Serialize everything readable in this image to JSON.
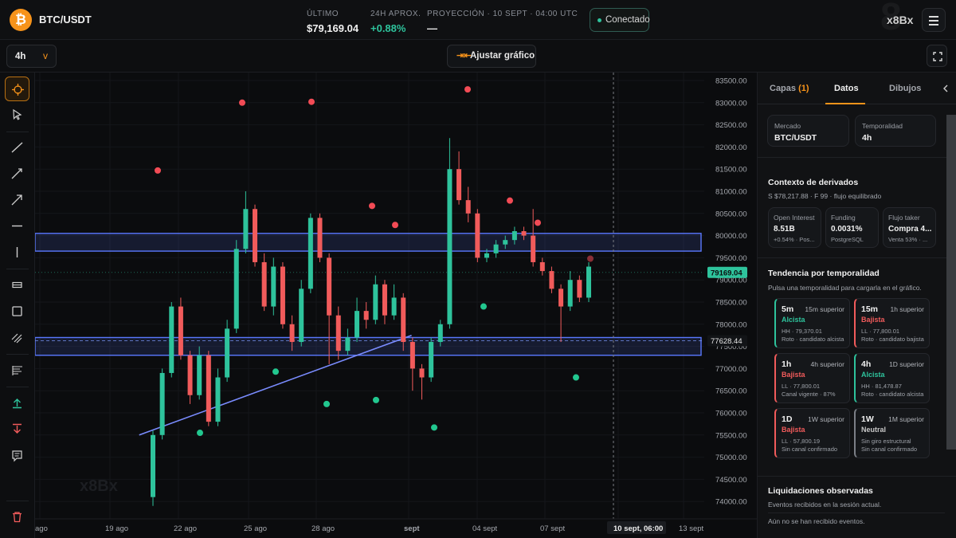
{
  "header": {
    "pair_icon": "bitcoin-icon",
    "pair": "BTC/USDT",
    "last_label": "ÚLTIMO",
    "last_value": "$79,169.04",
    "change_label": "24H APROX.",
    "change_value": "+0.88%",
    "projection_label": "PROYECCIÓN · 10 SEPT · 04:00 UTC",
    "projection_value": "—",
    "status": "Conectado",
    "brand": "x8Bx",
    "brand_bg": "8",
    "menu_icon": "hamburger-menu-icon"
  },
  "toolbar": {
    "timeframe": "4h",
    "timeframe_chevron": "v",
    "fit_label": "Ajustar gráfico",
    "fit_icon": "fit-arrows-icon",
    "fullscreen_icon": "fullscreen-icon"
  },
  "tools": [
    "crosshair-icon",
    "cursor-icon",
    "trend-line-icon",
    "ray-icon",
    "arrow-icon",
    "horizontal-line-icon",
    "vertical-line-icon",
    "rectangle-band-icon",
    "rectangle-icon",
    "channel-icon",
    "fib-levels-icon",
    "long-position-icon",
    "short-position-icon",
    "note-icon",
    "trash-icon"
  ],
  "chart_data": {
    "type": "candlestick",
    "symbol": "BTC/USDT",
    "timeframe": "4h",
    "watermark": "x8Bx",
    "y_ticks": [
      "83500.00",
      "83000.00",
      "82500.00",
      "82000.00",
      "81500.00",
      "81000.00",
      "80500.00",
      "80000.00",
      "79500.00",
      "79000.00",
      "78500.00",
      "78000.00",
      "77500.00",
      "77000.00",
      "76500.00",
      "76000.00",
      "75500.00",
      "75000.00",
      "74500.00",
      "74000.00"
    ],
    "x_ticks": [
      "ago",
      "19 ago",
      "22 ago",
      "25 ago",
      "28 ago",
      "sept",
      "04 sept",
      "07 sept",
      "10 sept, 06:00",
      "13 sept"
    ],
    "price_tag": "79169.04",
    "level_tag": "77628.44",
    "colors": {
      "up": "#2ec39c",
      "down": "#f15b5b",
      "zone": "#5a78ff",
      "accent": "#f7931a"
    },
    "zones": [
      [
        79650,
        80050
      ],
      [
        77300,
        77700
      ]
    ],
    "trendline": [
      [
        9,
        75500
      ],
      [
        26,
        77750
      ]
    ],
    "candles": [
      [
        74100,
        75500,
        73900,
        75600
      ],
      [
        75500,
        76900,
        75400,
        77000
      ],
      [
        76900,
        78400,
        76800,
        78500
      ],
      [
        78400,
        77300,
        77200,
        78600
      ],
      [
        77300,
        76400,
        76200,
        77400
      ],
      [
        76400,
        77300,
        76300,
        77500
      ],
      [
        77300,
        75800,
        75700,
        77400
      ],
      [
        75800,
        76800,
        75700,
        77000
      ],
      [
        76800,
        77900,
        76700,
        78100
      ],
      [
        77900,
        79700,
        77800,
        79900
      ],
      [
        79700,
        80600,
        79600,
        81000
      ],
      [
        80600,
        79400,
        79300,
        80700
      ],
      [
        79400,
        78400,
        78300,
        79600
      ],
      [
        78400,
        79300,
        78200,
        79500
      ],
      [
        79300,
        78000,
        77900,
        79400
      ],
      [
        78000,
        77600,
        77400,
        78200
      ],
      [
        77600,
        78800,
        77500,
        79000
      ],
      [
        78800,
        80400,
        78700,
        80500
      ],
      [
        80400,
        79500,
        79400,
        80500
      ],
      [
        79500,
        78200,
        77100,
        79600
      ],
      [
        78200,
        77400,
        77200,
        78400
      ],
      [
        77400,
        77700,
        77300,
        77900
      ],
      [
        77700,
        78300,
        77600,
        78600
      ],
      [
        78300,
        78100,
        77900,
        78500
      ],
      [
        78100,
        78900,
        78000,
        79100
      ],
      [
        78900,
        78200,
        78000,
        79000
      ],
      [
        78200,
        78600,
        78100,
        78900
      ],
      [
        78600,
        77600,
        77400,
        78700
      ],
      [
        77600,
        77000,
        76500,
        77700
      ],
      [
        77000,
        76800,
        76300,
        77100
      ],
      [
        76800,
        77600,
        76700,
        77700
      ],
      [
        77600,
        78000,
        77500,
        78100
      ],
      [
        78000,
        81500,
        77900,
        82200
      ],
      [
        81500,
        80800,
        80700,
        81900
      ],
      [
        80800,
        80500,
        80300,
        81100
      ],
      [
        80500,
        79500,
        79400,
        80600
      ],
      [
        79500,
        79600,
        79400,
        79700
      ],
      [
        79600,
        79800,
        79500,
        79900
      ],
      [
        79800,
        79900,
        79700,
        80000
      ],
      [
        79900,
        80100,
        79800,
        80200
      ],
      [
        80100,
        80000,
        79900,
        80200
      ],
      [
        80000,
        79400,
        79300,
        80600
      ],
      [
        79400,
        79200,
        79100,
        79500
      ],
      [
        79200,
        78800,
        78700,
        79300
      ],
      [
        78800,
        78400,
        77600,
        78900
      ],
      [
        78400,
        79000,
        78300,
        79200
      ],
      [
        79000,
        78600,
        78500,
        79100
      ],
      [
        78600,
        79300,
        78500,
        79400
      ]
    ]
  },
  "sidebar": {
    "tabs": [
      {
        "label": "Capas",
        "badge": "(1)"
      },
      {
        "label": "Datos"
      },
      {
        "label": "Dibujos"
      }
    ],
    "collapse_icon": "chevron-left-icon",
    "market_label": "Mercado",
    "market_value": "BTC/USDT",
    "tf_label": "Temporalidad",
    "tf_value": "4h",
    "deriv_title": "Contexto de derivados",
    "deriv_sub": "S $78,217.88 · F 99 · flujo equilibrado",
    "oi_label": "Open Interest",
    "oi_value": "8.51B",
    "oi_sub": "+0.54% · Pos...",
    "funding_label": "Funding",
    "funding_value": "0.0031%",
    "funding_sub": "PostgreSQL",
    "taker_label": "Flujo taker",
    "taker_value": "Compra 4...",
    "taker_sub": "Venta 53% · ...",
    "trend_title": "Tendencia por temporalidad",
    "trend_sub": "Pulsa una temporalidad para cargarla en el gráfico.",
    "trends": [
      {
        "tf": "5m",
        "sup": "15m superior",
        "state": "Alcista",
        "l1": "HH · 79,370.01",
        "l2": "Roto · candidato alcista",
        "dir": "up"
      },
      {
        "tf": "15m",
        "sup": "1h superior",
        "state": "Bajista",
        "l1": "LL · 77,800.01",
        "l2": "Roto · candidato bajista",
        "dir": "dn"
      },
      {
        "tf": "1h",
        "sup": "4h superior",
        "state": "Bajista",
        "l1": "LL · 77,800.01",
        "l2": "Canal vigente · 87%",
        "dir": "dn"
      },
      {
        "tf": "4h",
        "sup": "1D superior",
        "state": "Alcista",
        "l1": "HH · 81,478.87",
        "l2": "Roto · candidato alcista",
        "dir": "up"
      },
      {
        "tf": "1D",
        "sup": "1W superior",
        "state": "Bajista",
        "l1": "LL · 57,800.19",
        "l2": "Sin canal confirmado",
        "dir": "dn"
      },
      {
        "tf": "1W",
        "sup": "1M superior",
        "state": "Neutral",
        "l1": "Sin giro estructural",
        "l2": "Sin canal confirmado",
        "dir": "nt"
      }
    ],
    "liq_title": "Liquidaciones observadas",
    "liq_sub": "Eventos recibidos en la sesión actual.",
    "liq_empty": "Aún no se han recibido eventos."
  }
}
